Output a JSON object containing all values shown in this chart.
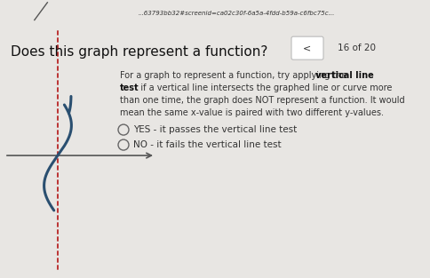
{
  "bg_color": "#e8e6e3",
  "top_bar_color": "#ccc8c2",
  "white_panel_color": "#f5f4f2",
  "url_text": "...63793bb32#screenid=ca02c30f-6a5a-4fdd-b59a-c6fbc75c...",
  "nav_text": "16 of 20",
  "question": "Does this graph represent a function?",
  "option1": "YES - it passes the vertical line test",
  "option2": "NO - it fails the vertical line test",
  "curve_color": "#2a4f70",
  "dash_color": "#bb3333",
  "axis_color": "#666666",
  "arrow_color": "#555555",
  "tick_color": "#888888",
  "nav_box_color": "#ffffff",
  "nav_border_color": "#bbbbbb"
}
